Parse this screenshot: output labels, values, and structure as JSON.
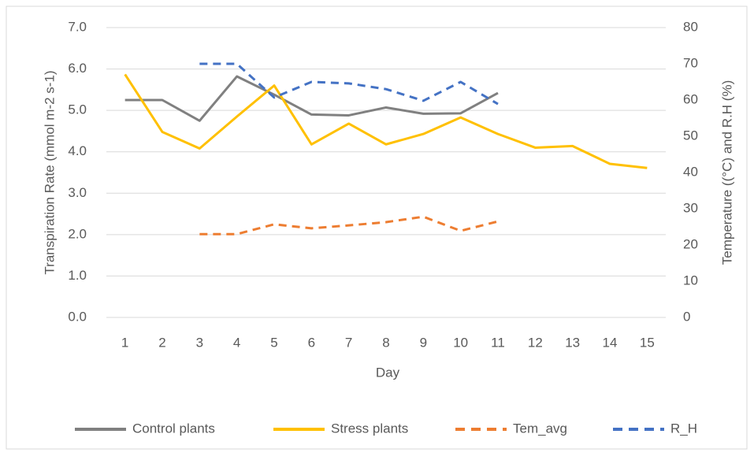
{
  "chart_data": {
    "type": "line",
    "x_label": "Day",
    "y_label": "Transpiration Rate (mmol m-2 s-1)",
    "y2_label": "Temperature ((°C) and R.H (%)",
    "categories": [
      "1",
      "2",
      "3",
      "4",
      "5",
      "6",
      "7",
      "8",
      "9",
      "10",
      "11",
      "12",
      "13",
      "14",
      "15"
    ],
    "ylim": [
      0,
      7
    ],
    "yticks": [
      {
        "value": 0,
        "label": "0.0"
      },
      {
        "value": 1,
        "label": "1.0"
      },
      {
        "value": 2,
        "label": "2.0"
      },
      {
        "value": 3,
        "label": "3.0"
      },
      {
        "value": 4,
        "label": "4.0"
      },
      {
        "value": 5,
        "label": "5.0"
      },
      {
        "value": 6,
        "label": "6.0"
      },
      {
        "value": 7,
        "label": "7.0"
      }
    ],
    "y2lim": [
      0,
      80
    ],
    "y2ticks": [
      0,
      10,
      20,
      30,
      40,
      50,
      60,
      70,
      80
    ],
    "grid": true,
    "legend": "bottom",
    "series": [
      {
        "name": "Control plants",
        "color": "#808080",
        "dashed": false,
        "values": [
          5.25,
          5.25,
          4.75,
          5.82,
          5.38,
          4.9,
          4.88,
          5.07,
          4.92,
          4.93,
          5.42,
          null,
          null,
          null,
          null
        ]
      },
      {
        "name": "Stress plants",
        "color": "#ffc000",
        "dashed": false,
        "values": [
          5.87,
          4.48,
          4.08,
          4.85,
          5.6,
          4.18,
          4.68,
          4.18,
          4.43,
          4.83,
          4.43,
          4.1,
          4.14,
          3.71,
          3.61
        ]
      },
      {
        "name": "Tem_avg",
        "color": "#ed7d31",
        "dashed": true,
        "axis": "y2",
        "values": [
          null,
          null,
          23,
          23,
          25.7,
          24.6,
          25.4,
          26.3,
          27.8,
          23.9,
          26.5,
          null,
          null,
          null,
          null
        ]
      },
      {
        "name": "R_H",
        "color": "#4472c4",
        "dashed": true,
        "axis": "y2",
        "values": [
          null,
          null,
          70,
          70,
          60.7,
          65,
          64.6,
          63,
          59.8,
          65,
          58.9,
          null,
          null,
          null,
          null
        ]
      }
    ]
  }
}
